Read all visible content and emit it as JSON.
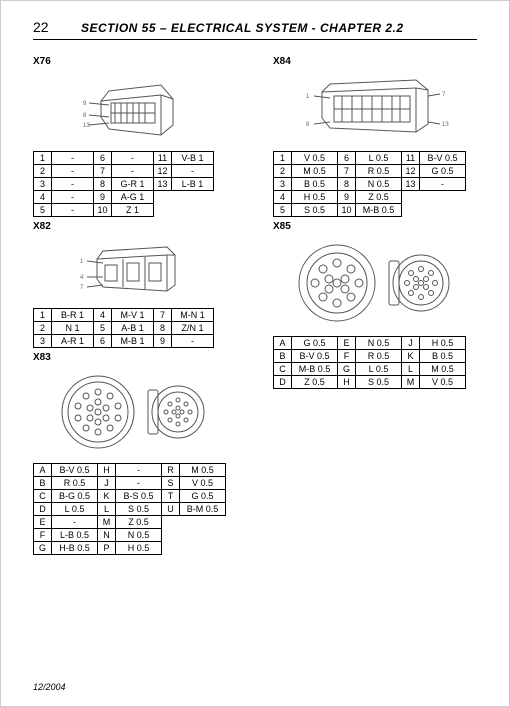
{
  "page": {
    "number": "22",
    "title": "SECTION 55 – ELECTRICAL SYSTEM - CHAPTER 2.2",
    "footer_date": "12/2004"
  },
  "left": {
    "x76": {
      "label": "X76",
      "rows": [
        [
          "1",
          "-",
          "6",
          "-",
          "11",
          "V-B 1"
        ],
        [
          "2",
          "-",
          "7",
          "-",
          "12",
          "-"
        ],
        [
          "3",
          "-",
          "8",
          "G-R 1",
          "13",
          "L-B 1"
        ],
        [
          "4",
          "-",
          "9",
          "A-G 1",
          "",
          ""
        ],
        [
          "5",
          "-",
          "10",
          "Z 1",
          "",
          ""
        ]
      ]
    },
    "x82": {
      "label": "X82",
      "rows": [
        [
          "1",
          "B-R 1",
          "4",
          "M-V 1",
          "7",
          "M-N 1"
        ],
        [
          "2",
          "N 1",
          "5",
          "A-B 1",
          "8",
          "Z/N 1"
        ],
        [
          "3",
          "A-R 1",
          "6",
          "M-B 1",
          "9",
          "-"
        ]
      ]
    },
    "x83": {
      "label": "X83",
      "rows": [
        [
          "A",
          "B-V 0.5",
          "H",
          "-",
          "R",
          "M 0.5"
        ],
        [
          "B",
          "R 0.5",
          "J",
          "-",
          "S",
          "V 0.5"
        ],
        [
          "C",
          "B-G 0.5",
          "K",
          "B-S 0.5",
          "T",
          "G 0.5"
        ],
        [
          "D",
          "L 0.5",
          "L",
          "S 0.5",
          "U",
          "B-M 0.5"
        ],
        [
          "E",
          "-",
          "M",
          "Z 0.5",
          "",
          ""
        ],
        [
          "F",
          "L-B 0.5",
          "N",
          "N 0.5",
          "",
          ""
        ],
        [
          "G",
          "H-B 0.5",
          "P",
          "H 0.5",
          "",
          ""
        ]
      ]
    }
  },
  "right": {
    "x84": {
      "label": "X84",
      "rows": [
        [
          "1",
          "V 0.5",
          "6",
          "L 0.5",
          "11",
          "B-V 0.5"
        ],
        [
          "2",
          "M 0.5",
          "7",
          "R 0.5",
          "12",
          "G 0.5"
        ],
        [
          "3",
          "B 0.5",
          "8",
          "N 0.5",
          "13",
          "-"
        ],
        [
          "4",
          "H 0.5",
          "9",
          "Z 0.5",
          "",
          ""
        ],
        [
          "5",
          "S 0.5",
          "10",
          "M-B 0.5",
          "",
          ""
        ]
      ]
    },
    "x85": {
      "label": "X85",
      "rows": [
        [
          "A",
          "G 0.5",
          "E",
          "N 0.5",
          "J",
          "H 0.5"
        ],
        [
          "B",
          "B-V 0.5",
          "F",
          "R 0.5",
          "K",
          "B 0.5"
        ],
        [
          "C",
          "M-B 0.5",
          "G",
          "L 0.5",
          "L",
          "M 0.5"
        ],
        [
          "D",
          "Z 0.5",
          "H",
          "S 0.5",
          "M",
          "V 0.5"
        ]
      ]
    }
  }
}
